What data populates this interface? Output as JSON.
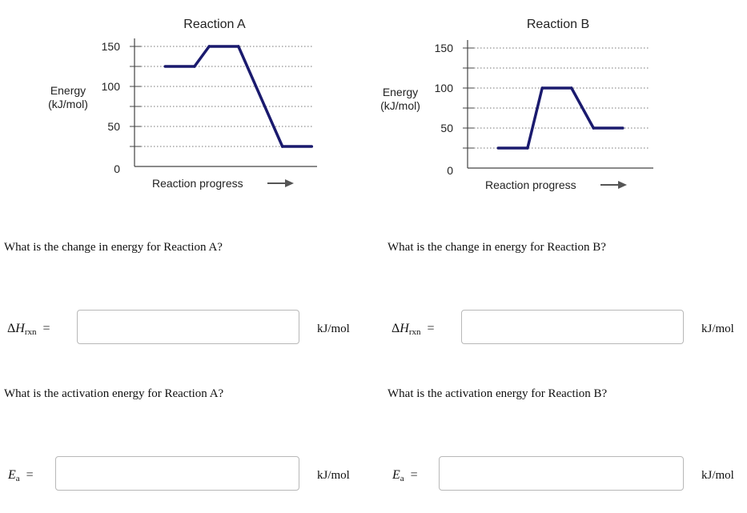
{
  "chart_data": [
    {
      "type": "line",
      "title": "Reaction A",
      "ylabel_lines": [
        "Energy",
        "(kJ/mol)"
      ],
      "xlabel": "Reaction progress",
      "ylim": [
        0,
        150
      ],
      "y_ticks": [
        0,
        50,
        100,
        150
      ],
      "y_tick_labels": [
        "0",
        "50",
        "100",
        "150"
      ],
      "minor_gridlines": [
        25,
        75,
        125
      ],
      "grid": true,
      "color": "#1a1a6e",
      "x": [
        0.1,
        0.3,
        0.4,
        0.6,
        0.9,
        1.1
      ],
      "y": [
        125,
        125,
        150,
        150,
        25,
        25
      ]
    },
    {
      "type": "line",
      "title": "Reaction B",
      "ylabel_lines": [
        "Energy",
        "(kJ/mol)"
      ],
      "xlabel": "Reaction progress",
      "ylim": [
        0,
        150
      ],
      "y_ticks": [
        0,
        50,
        100,
        150
      ],
      "y_tick_labels": [
        "0",
        "50",
        "100",
        "150"
      ],
      "minor_gridlines": [
        25,
        75,
        125
      ],
      "grid": true,
      "color": "#1a1a6e",
      "x": [
        0.1,
        0.3,
        0.4,
        0.6,
        0.75,
        0.95
      ],
      "y": [
        25,
        25,
        100,
        100,
        50,
        50
      ]
    }
  ],
  "questions": {
    "a_change": "What is the change in energy for Reaction A?",
    "b_change": "What is the change in energy for Reaction B?",
    "a_activation": "What is the activation energy for Reaction A?",
    "b_activation": "What is the activation energy for Reaction B?"
  },
  "labels": {
    "delta": "Δ",
    "h": "H",
    "rxn": "rxn",
    "ea_e": "E",
    "ea_sub": "a",
    "equals": "=",
    "unit": "kJ/mol"
  },
  "inputs": {
    "a_delta_h": "",
    "b_delta_h": "",
    "a_ea": "",
    "b_ea": ""
  }
}
